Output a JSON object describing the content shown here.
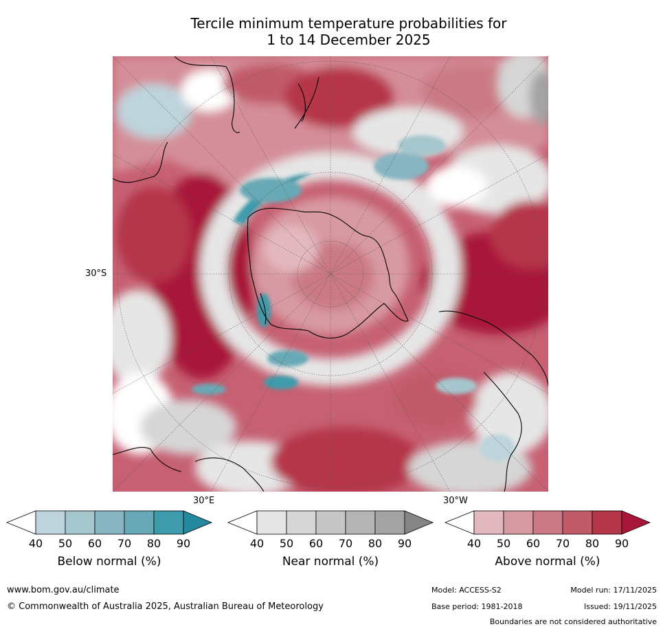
{
  "title": {
    "line1": "Tercile minimum temperature probabilities for",
    "line2": "1 to 14 December 2025"
  },
  "map": {
    "projection": "south-polar-stereographic",
    "lat_label": "30°S",
    "lon_label_east": "30°E",
    "lon_label_west": "30°W",
    "colors": {
      "background": "#ffffff",
      "coast": "#000000",
      "grid": "#555555"
    }
  },
  "colorbars": [
    {
      "name": "below",
      "label": "Below normal (%)",
      "ticks": [
        "40",
        "50",
        "60",
        "70",
        "80",
        "90"
      ],
      "colors": [
        "#bdd4dc",
        "#a5c6cd",
        "#87b5c1",
        "#67a9b6",
        "#3e9bac",
        "#24889e"
      ]
    },
    {
      "name": "near",
      "label": "Near normal (%)",
      "ticks": [
        "40",
        "50",
        "60",
        "70",
        "80",
        "90"
      ],
      "colors": [
        "#e6e6e6",
        "#d6d6d6",
        "#c6c6c6",
        "#b4b4b4",
        "#a3a3a3",
        "#858585"
      ]
    },
    {
      "name": "above",
      "label": "Above normal (%)",
      "ticks": [
        "40",
        "50",
        "60",
        "70",
        "80",
        "90"
      ],
      "colors": [
        "#e3b8be",
        "#d89aa2",
        "#cb7a85",
        "#c15a69",
        "#b53549",
        "#a8173a"
      ]
    }
  ],
  "footer": {
    "website": "www.bom.gov.au/climate",
    "copyright": "© Commonwealth of Australia 2025, Australian Bureau of Meteorology",
    "model": "Model: ACCESS-S2",
    "base_period": "Base period: 1981-2018",
    "model_run": "Model run: 17/11/2025",
    "issued": "Issued: 19/11/2025",
    "disclaimer": "Boundaries are not considered authoritative"
  }
}
